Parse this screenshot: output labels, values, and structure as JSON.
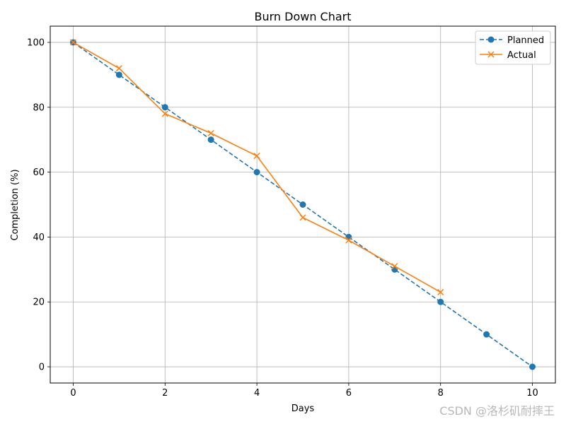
{
  "chart_data": {
    "type": "line",
    "title": "Burn Down Chart",
    "xlabel": "Days",
    "ylabel": "Completion (%)",
    "xlim": [
      -0.5,
      10.5
    ],
    "ylim": [
      -5,
      105
    ],
    "xticks": [
      0,
      2,
      4,
      6,
      8,
      10
    ],
    "yticks": [
      0,
      20,
      40,
      60,
      80,
      100
    ],
    "grid": true,
    "legend_position": "top-right",
    "series": [
      {
        "name": "Planned",
        "color": "#1f77b4",
        "line_style": "dashed",
        "marker": "circle",
        "x": [
          0,
          1,
          2,
          3,
          4,
          5,
          6,
          7,
          8,
          9,
          10
        ],
        "y": [
          100,
          90,
          80,
          70,
          60,
          50,
          40,
          30,
          20,
          10,
          0
        ]
      },
      {
        "name": "Actual",
        "color": "#ff7f0e",
        "line_style": "solid",
        "marker": "x",
        "x": [
          0,
          1,
          2,
          3,
          4,
          5,
          6,
          7,
          8
        ],
        "y": [
          100,
          92,
          78,
          72,
          65,
          46,
          39,
          31,
          23
        ]
      }
    ]
  },
  "watermark": "CSDN @洛杉矶耐摔王"
}
